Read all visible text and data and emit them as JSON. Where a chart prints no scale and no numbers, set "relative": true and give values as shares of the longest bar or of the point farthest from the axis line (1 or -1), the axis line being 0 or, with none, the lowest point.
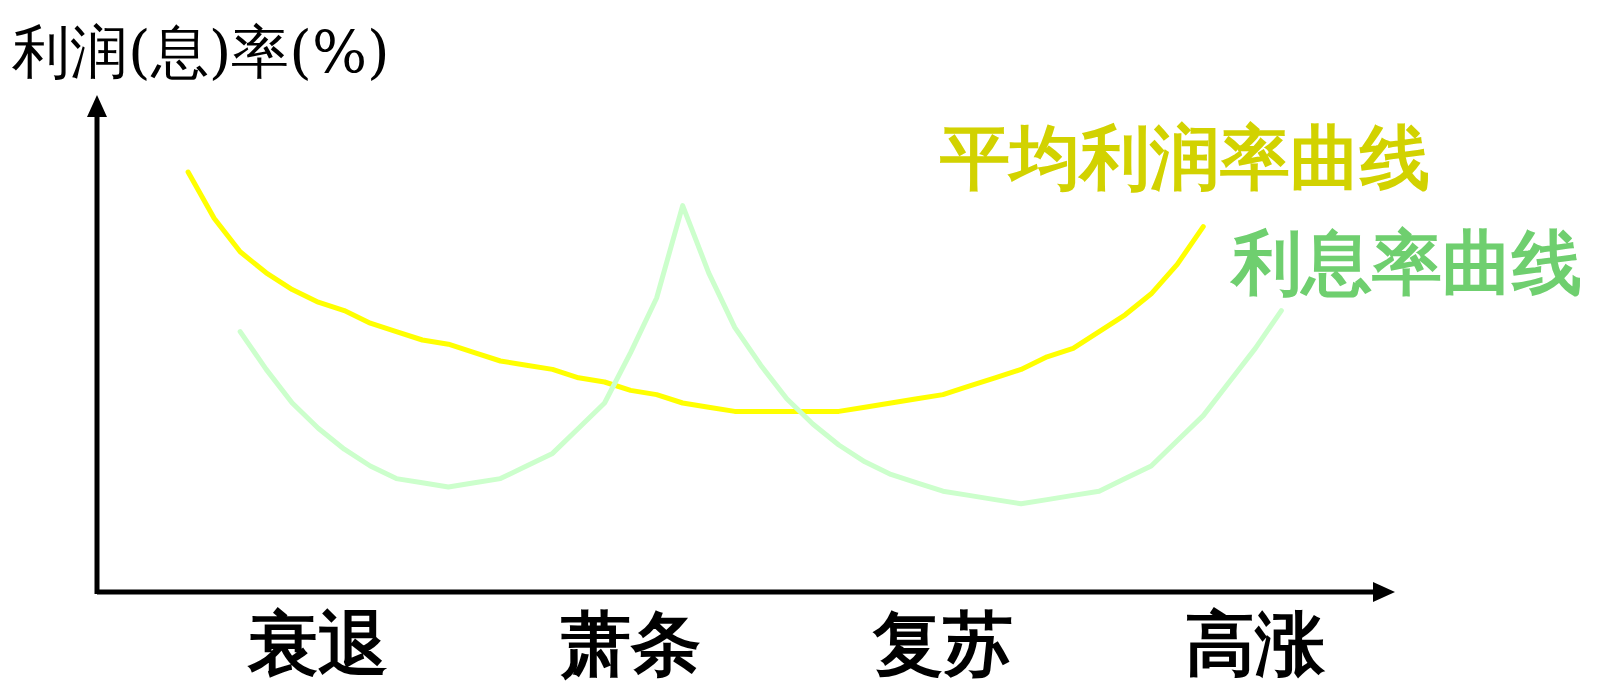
{
  "chart_data": {
    "type": "line",
    "relative": true,
    "ylabel": "利润(息)率(%)",
    "legend": false,
    "grid": false,
    "marker": "none",
    "line_style": "solid",
    "categories": [
      null,
      null,
      null,
      null,
      null,
      null,
      null,
      null,
      "衰退",
      null,
      null,
      null,
      null,
      null,
      null,
      null,
      null,
      null,
      null,
      null,
      "萧条",
      null,
      null,
      null,
      null,
      null,
      null,
      null,
      null,
      null,
      null,
      null,
      "复苏",
      null,
      null,
      null,
      null,
      null,
      null,
      null,
      null,
      null,
      null,
      null,
      "高涨",
      null,
      null,
      null,
      null,
      null
    ],
    "series": [
      {
        "name": "平均利润率曲线",
        "color": "#ffff00",
        "values": [
          null,
          null,
          null,
          1.0,
          0.89,
          0.81,
          0.76,
          0.72,
          0.69,
          0.67,
          0.64,
          0.62,
          0.6,
          0.59,
          0.57,
          0.55,
          0.54,
          0.53,
          0.51,
          0.5,
          0.48,
          0.47,
          0.45,
          0.44,
          0.43,
          0.43,
          0.43,
          0.43,
          0.43,
          0.44,
          0.45,
          0.46,
          0.47,
          0.49,
          0.51,
          0.53,
          0.56,
          0.58,
          0.62,
          0.66,
          0.71,
          0.78,
          0.87,
          null,
          null,
          null,
          null,
          null,
          null,
          null
        ]
      },
      {
        "name": "利息率曲线",
        "color": "#ccffcc",
        "values": [
          null,
          null,
          null,
          null,
          null,
          0.62,
          0.53,
          0.45,
          0.39,
          0.34,
          0.3,
          0.27,
          0.26,
          0.25,
          0.26,
          0.27,
          0.3,
          0.33,
          0.39,
          0.45,
          0.57,
          0.7,
          0.92,
          0.76,
          0.63,
          0.54,
          0.46,
          0.4,
          0.35,
          0.31,
          0.28,
          0.26,
          0.24,
          0.23,
          0.22,
          0.21,
          0.22,
          0.23,
          0.24,
          0.27,
          0.3,
          0.36,
          0.42,
          0.5,
          0.58,
          0.67,
          null,
          null,
          null,
          null
        ]
      }
    ]
  }
}
